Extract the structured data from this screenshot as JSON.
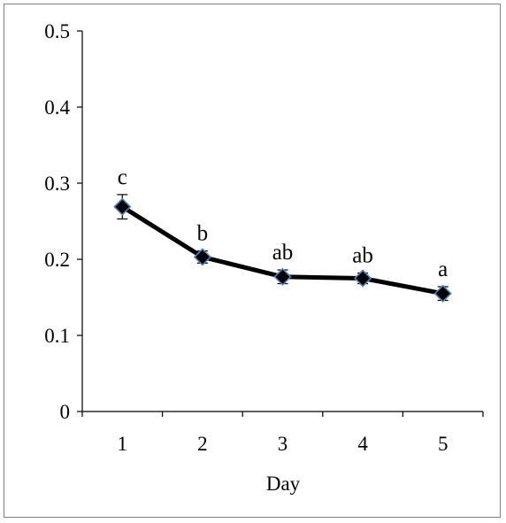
{
  "chart_data": {
    "type": "line",
    "title": "",
    "xlabel": "Day",
    "ylabel": "",
    "x": [
      "1",
      "2",
      "3",
      "4",
      "5"
    ],
    "ylim": [
      0,
      0.5
    ],
    "yticks": [
      0,
      0.1,
      0.2,
      0.3,
      0.4,
      0.5
    ],
    "ytick_labels": [
      "0",
      "0.1",
      "0.2",
      "0.3",
      "0.4",
      "0.5"
    ],
    "series": [
      {
        "values": [
          0.269,
          0.203,
          0.177,
          0.175,
          0.155
        ],
        "error": [
          0.016,
          0.008,
          0.009,
          0.007,
          0.009
        ],
        "labels": [
          "c",
          "b",
          "ab",
          "ab",
          "a"
        ]
      }
    ],
    "grid": false,
    "legend": "none",
    "colors": {
      "line": "#000000",
      "marker_fill": "#000000",
      "marker_edge": "#4f81bd",
      "axis": "#000000",
      "frame": "#808080"
    }
  }
}
